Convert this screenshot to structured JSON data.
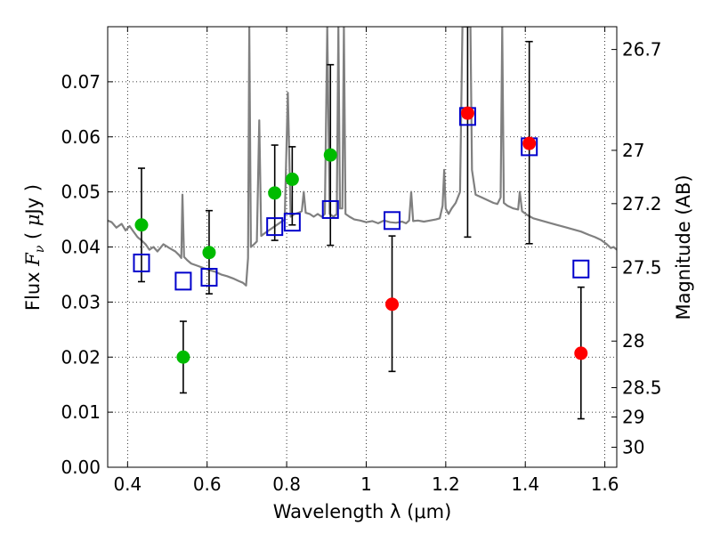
{
  "chart_data": {
    "type": "scatter",
    "xlabel": "Wavelength  λ (μm)",
    "ylabel": "Flux  F_ν  ( μJy )",
    "ylabel_parts": {
      "pre": "Flux  ",
      "F": "F",
      "nu": "ν",
      "mid": "  ( ",
      "mu": "μ",
      "post": "Jy )"
    },
    "y2label": "Magnitude (AB)",
    "xlim": [
      0.35,
      1.63
    ],
    "ylim": [
      0.0,
      0.08
    ],
    "grid": true,
    "xticks": [
      0.4,
      0.6,
      0.8,
      1.0,
      1.2,
      1.4,
      1.6
    ],
    "xtick_labels": [
      "0.4",
      "0.6",
      "0.8",
      "1",
      "1.2",
      "1.4",
      "1.6"
    ],
    "yticks": [
      0.0,
      0.01,
      0.02,
      0.03,
      0.04,
      0.05,
      0.06,
      0.07
    ],
    "ytick_labels": [
      "0.00",
      "0.01",
      "0.02",
      "0.03",
      "0.04",
      "0.05",
      "0.06",
      "0.07"
    ],
    "y2ticks": [
      {
        "label": "26.7",
        "mag": 26.7
      },
      {
        "label": "27",
        "mag": 27
      },
      {
        "label": "27.2",
        "mag": 27.2
      },
      {
        "label": "27.5",
        "mag": 27.5
      },
      {
        "label": "28",
        "mag": 28
      },
      {
        "label": "28.5",
        "mag": 28.5
      },
      {
        "label": "29",
        "mag": 29
      },
      {
        "label": "30",
        "mag": 30
      }
    ],
    "series": [
      {
        "marker": "circle",
        "color": "#00bb00",
        "points": [
          {
            "x": 0.435,
            "y": 0.044,
            "err_low": 0.0337,
            "err_high": 0.0543
          },
          {
            "x": 0.54,
            "y": 0.02,
            "err_low": 0.0135,
            "err_high": 0.0265
          },
          {
            "x": 0.605,
            "y": 0.039,
            "err_low": 0.0315,
            "err_high": 0.0466
          },
          {
            "x": 0.77,
            "y": 0.0498,
            "err_low": 0.0412,
            "err_high": 0.0585
          },
          {
            "x": 0.814,
            "y": 0.0523,
            "err_low": 0.044,
            "err_high": 0.0582
          },
          {
            "x": 0.91,
            "y": 0.0567,
            "err_low": 0.0403,
            "err_high": 0.0731
          }
        ]
      },
      {
        "marker": "circle",
        "color": "#ff0000",
        "points": [
          {
            "x": 1.065,
            "y": 0.0296,
            "err_low": 0.0174,
            "err_high": 0.042
          },
          {
            "x": 1.255,
            "y": 0.0643,
            "err_low": 0.0418,
            "err_high": 0.081
          },
          {
            "x": 1.41,
            "y": 0.0588,
            "err_low": 0.0406,
            "err_high": 0.0773
          },
          {
            "x": 1.54,
            "y": 0.0207,
            "err_low": 0.0088,
            "err_high": 0.0327
          }
        ]
      },
      {
        "marker": "open-square",
        "color": "#0000cc",
        "points": [
          {
            "x": 0.435,
            "y": 0.0371
          },
          {
            "x": 0.54,
            "y": 0.0338
          },
          {
            "x": 0.605,
            "y": 0.0345
          },
          {
            "x": 0.77,
            "y": 0.0437
          },
          {
            "x": 0.814,
            "y": 0.0445
          },
          {
            "x": 0.91,
            "y": 0.0468
          },
          {
            "x": 1.065,
            "y": 0.0448
          },
          {
            "x": 1.255,
            "y": 0.0637
          },
          {
            "x": 1.41,
            "y": 0.0582
          },
          {
            "x": 1.54,
            "y": 0.036
          }
        ]
      }
    ],
    "spectrum": {
      "color": "#808080",
      "points": [
        [
          0.35,
          0.0448
        ],
        [
          0.36,
          0.0445
        ],
        [
          0.372,
          0.0435
        ],
        [
          0.385,
          0.0442
        ],
        [
          0.395,
          0.043
        ],
        [
          0.405,
          0.0438
        ],
        [
          0.415,
          0.0428
        ],
        [
          0.425,
          0.0418
        ],
        [
          0.435,
          0.0412
        ],
        [
          0.445,
          0.0405
        ],
        [
          0.455,
          0.0395
        ],
        [
          0.465,
          0.04
        ],
        [
          0.475,
          0.0392
        ],
        [
          0.49,
          0.0405
        ],
        [
          0.505,
          0.0398
        ],
        [
          0.52,
          0.0392
        ],
        [
          0.53,
          0.0385
        ],
        [
          0.535,
          0.038
        ],
        [
          0.538,
          0.0495
        ],
        [
          0.542,
          0.0382
        ],
        [
          0.55,
          0.0376
        ],
        [
          0.56,
          0.037
        ],
        [
          0.575,
          0.0366
        ],
        [
          0.59,
          0.0362
        ],
        [
          0.605,
          0.0358
        ],
        [
          0.62,
          0.0355
        ],
        [
          0.635,
          0.035
        ],
        [
          0.65,
          0.0347
        ],
        [
          0.665,
          0.0343
        ],
        [
          0.68,
          0.0338
        ],
        [
          0.69,
          0.0335
        ],
        [
          0.698,
          0.033
        ],
        [
          0.703,
          0.038
        ],
        [
          0.706,
          0.08
        ],
        [
          0.71,
          0.04
        ],
        [
          0.718,
          0.0405
        ],
        [
          0.725,
          0.041
        ],
        [
          0.731,
          0.063
        ],
        [
          0.736,
          0.042
        ],
        [
          0.745,
          0.0425
        ],
        [
          0.755,
          0.043
        ],
        [
          0.765,
          0.0435
        ],
        [
          0.775,
          0.044
        ],
        [
          0.785,
          0.0445
        ],
        [
          0.795,
          0.045
        ],
        [
          0.803,
          0.068
        ],
        [
          0.81,
          0.0455
        ],
        [
          0.82,
          0.046
        ],
        [
          0.83,
          0.0462
        ],
        [
          0.838,
          0.0465
        ],
        [
          0.843,
          0.05
        ],
        [
          0.848,
          0.0462
        ],
        [
          0.858,
          0.046
        ],
        [
          0.868,
          0.0455
        ],
        [
          0.878,
          0.046
        ],
        [
          0.888,
          0.0455
        ],
        [
          0.896,
          0.046
        ],
        [
          0.902,
          0.08
        ],
        [
          0.908,
          0.046
        ],
        [
          0.918,
          0.0455
        ],
        [
          0.926,
          0.046
        ],
        [
          0.93,
          0.08
        ],
        [
          0.934,
          0.047
        ],
        [
          0.94,
          0.047
        ],
        [
          0.944,
          0.08
        ],
        [
          0.948,
          0.046
        ],
        [
          0.958,
          0.0455
        ],
        [
          0.97,
          0.045
        ],
        [
          0.985,
          0.0448
        ],
        [
          1.0,
          0.0445
        ],
        [
          1.015,
          0.0447
        ],
        [
          1.03,
          0.0443
        ],
        [
          1.045,
          0.0448
        ],
        [
          1.06,
          0.0445
        ],
        [
          1.075,
          0.0444
        ],
        [
          1.09,
          0.0446
        ],
        [
          1.1,
          0.0443
        ],
        [
          1.108,
          0.0448
        ],
        [
          1.113,
          0.05
        ],
        [
          1.118,
          0.0447
        ],
        [
          1.13,
          0.0448
        ],
        [
          1.145,
          0.0446
        ],
        [
          1.16,
          0.0448
        ],
        [
          1.175,
          0.045
        ],
        [
          1.185,
          0.0452
        ],
        [
          1.192,
          0.0475
        ],
        [
          1.196,
          0.054
        ],
        [
          1.2,
          0.047
        ],
        [
          1.207,
          0.046
        ],
        [
          1.215,
          0.047
        ],
        [
          1.225,
          0.048
        ],
        [
          1.236,
          0.05
        ],
        [
          1.242,
          0.08
        ],
        [
          1.252,
          0.08
        ],
        [
          1.262,
          0.08
        ],
        [
          1.266,
          0.054
        ],
        [
          1.275,
          0.0495
        ],
        [
          1.29,
          0.049
        ],
        [
          1.305,
          0.0485
        ],
        [
          1.32,
          0.048
        ],
        [
          1.33,
          0.0478
        ],
        [
          1.338,
          0.049
        ],
        [
          1.342,
          0.08
        ],
        [
          1.346,
          0.048
        ],
        [
          1.355,
          0.0475
        ],
        [
          1.37,
          0.047
        ],
        [
          1.382,
          0.0468
        ],
        [
          1.386,
          0.05
        ],
        [
          1.392,
          0.0465
        ],
        [
          1.405,
          0.0458
        ],
        [
          1.42,
          0.0452
        ],
        [
          1.44,
          0.0448
        ],
        [
          1.46,
          0.0444
        ],
        [
          1.48,
          0.044
        ],
        [
          1.5,
          0.0436
        ],
        [
          1.52,
          0.0432
        ],
        [
          1.54,
          0.0428
        ],
        [
          1.56,
          0.0422
        ],
        [
          1.575,
          0.0418
        ],
        [
          1.59,
          0.0413
        ],
        [
          1.605,
          0.0405
        ],
        [
          1.615,
          0.0398
        ],
        [
          1.622,
          0.04
        ],
        [
          1.63,
          0.0395
        ]
      ]
    }
  }
}
